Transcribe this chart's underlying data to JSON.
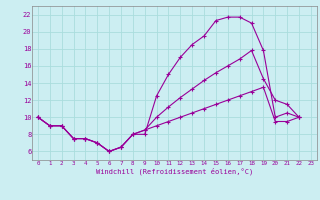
{
  "xlabel": "Windchill (Refroidissement éolien,°C)",
  "bg_color": "#cceef2",
  "grid_color": "#aadddd",
  "line_color": "#990099",
  "xlim": [
    -0.5,
    23.5
  ],
  "ylim": [
    5.0,
    23.0
  ],
  "yticks": [
    6,
    8,
    10,
    12,
    14,
    16,
    18,
    20,
    22
  ],
  "xticks": [
    0,
    1,
    2,
    3,
    4,
    5,
    6,
    7,
    8,
    9,
    10,
    11,
    12,
    13,
    14,
    15,
    16,
    17,
    18,
    19,
    20,
    21,
    22,
    23
  ],
  "line1_x": [
    0,
    1,
    2,
    3,
    4,
    5,
    6,
    7,
    8,
    9,
    10,
    11,
    12,
    13,
    14,
    15,
    16,
    17,
    18,
    19,
    20,
    21,
    22
  ],
  "line1_y": [
    10,
    9,
    9,
    7.5,
    7.5,
    7,
    6,
    6.5,
    8,
    8,
    12.5,
    15,
    17,
    18.5,
    19.5,
    21.3,
    21.7,
    21.7,
    21,
    17.8,
    10.0,
    10.5,
    10
  ],
  "line2_x": [
    0,
    1,
    2,
    3,
    4,
    5,
    6,
    7,
    8,
    9,
    10,
    11,
    12,
    13,
    14,
    15,
    16,
    17,
    18,
    19,
    20,
    21,
    22
  ],
  "line2_y": [
    10,
    9,
    9,
    7.5,
    7.5,
    7,
    6,
    6.5,
    8,
    8.5,
    10,
    11.2,
    12.3,
    13.3,
    14.3,
    15.2,
    16.0,
    16.8,
    17.8,
    14.5,
    12.0,
    11.5,
    10
  ],
  "line3_x": [
    0,
    1,
    2,
    3,
    4,
    5,
    6,
    7,
    8,
    9,
    10,
    11,
    12,
    13,
    14,
    15,
    16,
    17,
    18,
    19,
    20,
    21,
    22
  ],
  "line3_y": [
    10,
    9,
    9,
    7.5,
    7.5,
    7,
    6,
    6.5,
    8,
    8.5,
    9.0,
    9.5,
    10.0,
    10.5,
    11.0,
    11.5,
    12.0,
    12.5,
    13.0,
    13.5,
    9.5,
    9.5,
    10
  ]
}
